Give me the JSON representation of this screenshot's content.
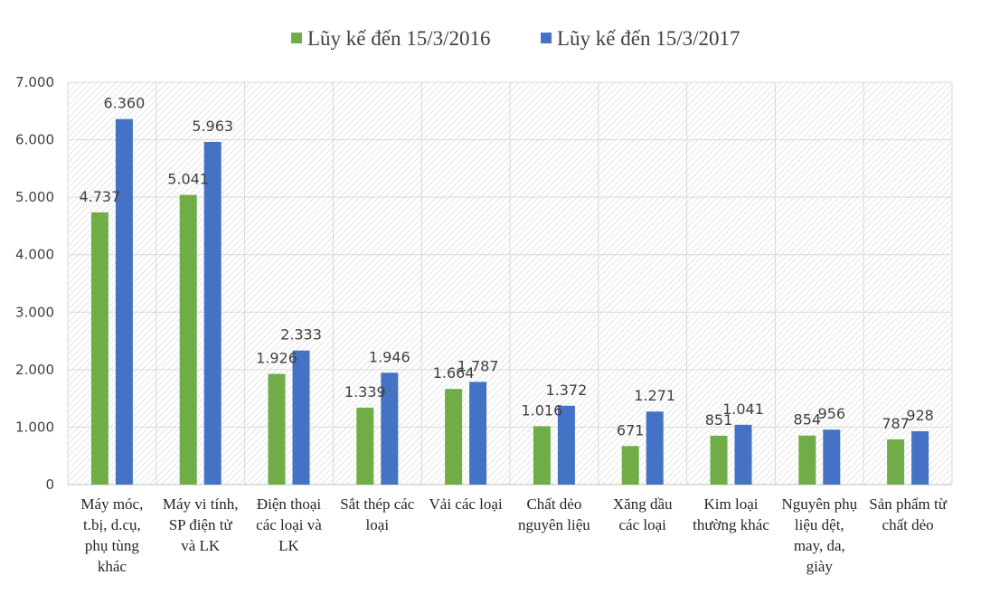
{
  "chart_data": {
    "type": "bar",
    "title": "",
    "xlabel": "",
    "ylabel": "",
    "ylim": [
      0,
      7000
    ],
    "y_ticks": [
      0,
      1000,
      2000,
      3000,
      4000,
      5000,
      6000,
      7000
    ],
    "y_tick_labels": [
      "0",
      "1.000",
      "2.000",
      "3.000",
      "4.000",
      "5.000",
      "6.000",
      "7.000"
    ],
    "grid": true,
    "legend_position": "top",
    "categories": [
      [
        "Máy móc,",
        "t.bị, d.cụ,",
        "phụ tùng",
        "khác"
      ],
      [
        "Máy vi tính,",
        "SP điện tử",
        "và LK"
      ],
      [
        "Điện thoại",
        "các loại và",
        "LK"
      ],
      [
        "Sắt thép các",
        "loại"
      ],
      [
        "Vải các loại"
      ],
      [
        "Chất dẻo",
        "nguyên liệu"
      ],
      [
        "Xăng dầu",
        "các loại"
      ],
      [
        "Kim loại",
        "thường khác"
      ],
      [
        "Nguyên phụ",
        "liệu dệt,",
        "may, da,",
        "giày"
      ],
      [
        "Sản phẩm từ",
        "chất dẻo"
      ]
    ],
    "series": [
      {
        "name": "Lũy kế đến 15/3/2016",
        "color": "#70AD47",
        "values": [
          4737,
          5041,
          1926,
          1339,
          1664,
          1016,
          671,
          851,
          854,
          787
        ],
        "labels": [
          "4.737",
          "5.041",
          "1.926",
          "1.339",
          "1.664",
          "1.016",
          "671",
          "851",
          "854",
          "787"
        ]
      },
      {
        "name": "Lũy kế đến 15/3/2017",
        "color": "#4472C4",
        "values": [
          6360,
          5963,
          2333,
          1946,
          1787,
          1372,
          1271,
          1041,
          956,
          928
        ],
        "labels": [
          "6.360",
          "5.963",
          "2.333",
          "1.946",
          "1.787",
          "1.372",
          "1.271",
          "1.041",
          "956",
          "928"
        ]
      }
    ]
  }
}
